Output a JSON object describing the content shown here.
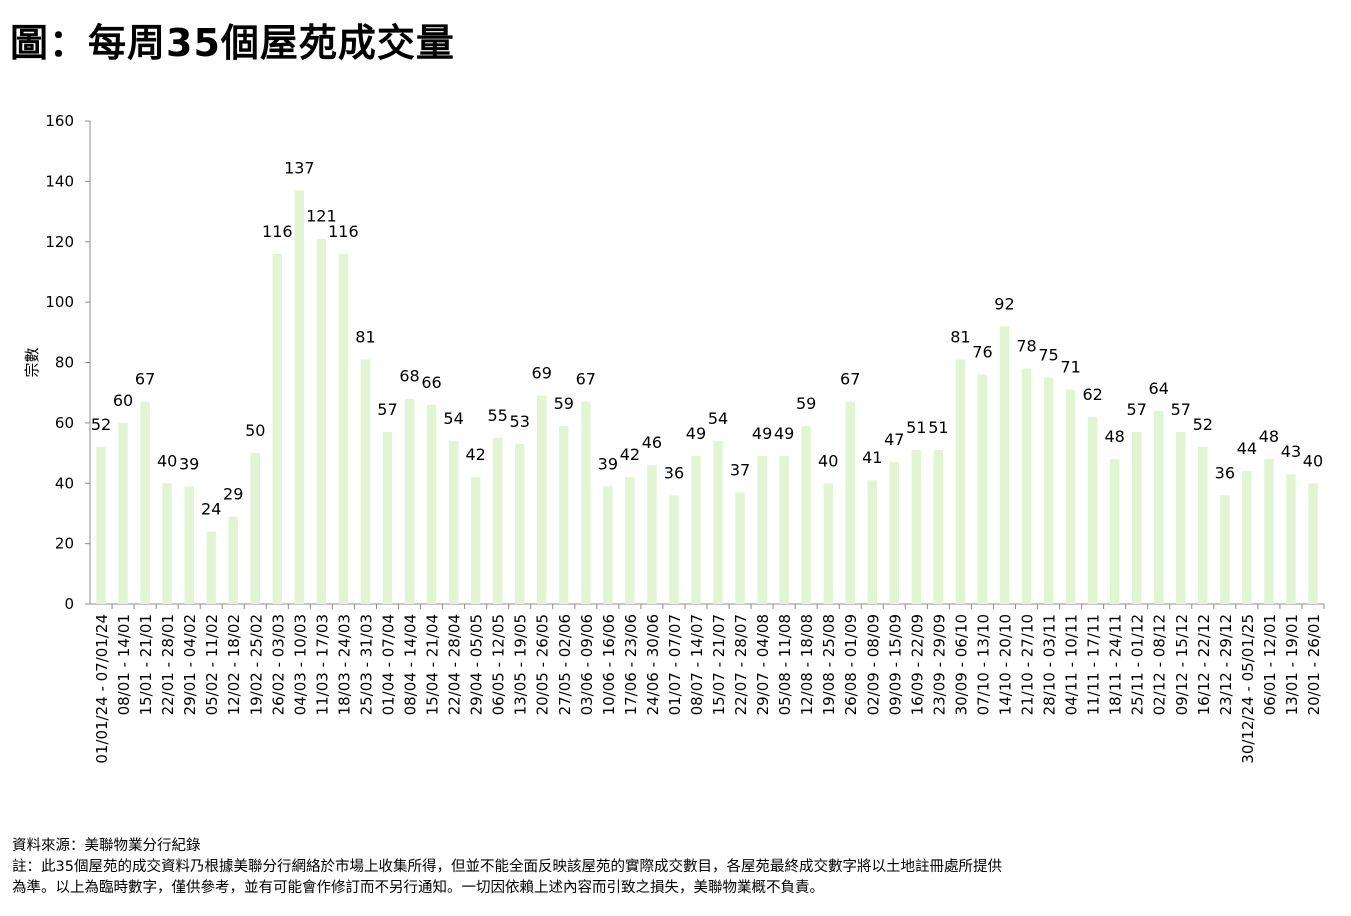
{
  "title": "圖：每周35個屋苑成交量",
  "chart_data": {
    "type": "bar",
    "ylabel": "宗數",
    "xlabel": "",
    "ylim": [
      0,
      160
    ],
    "yticks": [
      0,
      20,
      40,
      60,
      80,
      100,
      120,
      140,
      160
    ],
    "bar_color": "#e2f5d3",
    "grid": false,
    "categories": [
      "01/01/24 - 07/01/24",
      "08/01 - 14/01",
      "15/01 - 21/01",
      "22/01 - 28/01",
      "29/01 - 04/02",
      "05/02 - 11/02",
      "12/02 - 18/02",
      "19/02 - 25/02",
      "26/02 - 03/03",
      "04/03 - 10/03",
      "11/03 - 17/03",
      "18/03 - 24/03",
      "25/03 - 31/03",
      "01/04 - 07/04",
      "08/04 - 14/04",
      "15/04 - 21/04",
      "22/04 - 28/04",
      "29/04 - 05/05",
      "06/05 - 12/05",
      "13/05 - 19/05",
      "20/05 - 26/05",
      "27/05 - 02/06",
      "03/06 - 09/06",
      "10/06 - 16/06",
      "17/06 - 23/06",
      "24/06 - 30/06",
      "01/07 - 07/07",
      "08/07 - 14/07",
      "15/07 - 21/07",
      "22/07 - 28/07",
      "29/07 - 04/08",
      "05/08 - 11/08",
      "12/08 - 18/08",
      "19/08 - 25/08",
      "26/08 - 01/09",
      "02/09 - 08/09",
      "09/09 - 15/09",
      "16/09 - 22/09",
      "23/09 - 29/09",
      "30/09 - 06/10",
      "07/10 - 13/10",
      "14/10 - 20/10",
      "21/10 - 27/10",
      "28/10 - 03/11",
      "04/11 - 10/11",
      "11/11 - 17/11",
      "18/11 - 24/11",
      "25/11 - 01/12",
      "02/12 - 08/12",
      "09/12 - 15/12",
      "16/12 - 22/12",
      "23/12 - 29/12",
      "30/12/24 - 05/01/25",
      "06/01 - 12/01",
      "13/01 - 19/01",
      "20/01 - 26/01"
    ],
    "values": [
      52,
      60,
      67,
      40,
      39,
      24,
      29,
      50,
      116,
      137,
      121,
      116,
      81,
      57,
      68,
      66,
      54,
      42,
      55,
      53,
      69,
      59,
      67,
      39,
      42,
      46,
      36,
      49,
      54,
      37,
      49,
      49,
      59,
      40,
      67,
      41,
      47,
      51,
      51,
      81,
      76,
      92,
      78,
      75,
      71,
      62,
      48,
      57,
      64,
      57,
      52,
      36,
      44,
      48,
      43,
      40
    ]
  },
  "notes": {
    "source": "資料來源：美聯物業分行紀錄",
    "note_line1": "註：此35個屋苑的成交資料乃根據美聯分行網絡於市場上收集所得，但並不能全面反映該屋苑的實際成交數目，各屋苑最終成交數字將以土地註冊處所提供",
    "note_line2": "為準。以上為臨時數字，僅供參考，並有可能會作修訂而不另行通知。一切因依賴上述內容而引致之損失，美聯物業概不負責。"
  }
}
